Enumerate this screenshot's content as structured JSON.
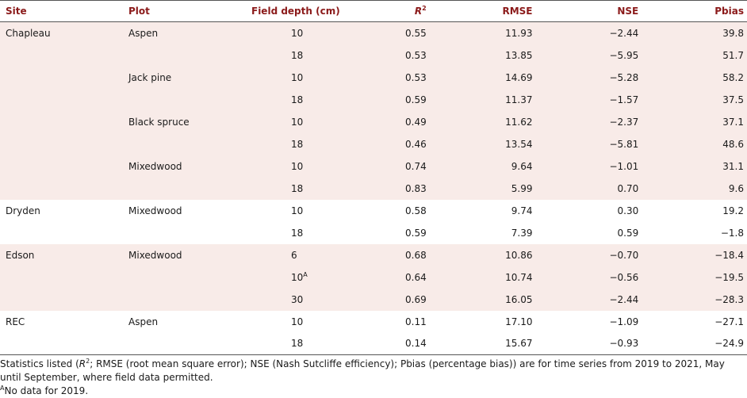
{
  "table": {
    "headers": {
      "site": "Site",
      "plot": "Plot",
      "depth": "Field depth (cm)",
      "r2_base": "R",
      "r2_sup": "2",
      "rmse": "RMSE",
      "nse": "NSE",
      "pbias": "Pbias"
    },
    "rows": [
      {
        "site": "Chapleau",
        "plot": "Aspen",
        "depth": "10",
        "depth_sup": "",
        "r2": "0.55",
        "rmse": "11.93",
        "nse": "−2.44",
        "pbias": "39.8"
      },
      {
        "site": "",
        "plot": "",
        "depth": "18",
        "depth_sup": "",
        "r2": "0.53",
        "rmse": "13.85",
        "nse": "−5.95",
        "pbias": "51.7"
      },
      {
        "site": "",
        "plot": "Jack pine",
        "depth": "10",
        "depth_sup": "",
        "r2": "0.53",
        "rmse": "14.69",
        "nse": "−5.28",
        "pbias": "58.2"
      },
      {
        "site": "",
        "plot": "",
        "depth": "18",
        "depth_sup": "",
        "r2": "0.59",
        "rmse": "11.37",
        "nse": "−1.57",
        "pbias": "37.5"
      },
      {
        "site": "",
        "plot": "Black spruce",
        "depth": "10",
        "depth_sup": "",
        "r2": "0.49",
        "rmse": "11.62",
        "nse": "−2.37",
        "pbias": "37.1"
      },
      {
        "site": "",
        "plot": "",
        "depth": "18",
        "depth_sup": "",
        "r2": "0.46",
        "rmse": "13.54",
        "nse": "−5.81",
        "pbias": "48.6"
      },
      {
        "site": "",
        "plot": "Mixedwood",
        "depth": "10",
        "depth_sup": "",
        "r2": "0.74",
        "rmse": "9.64",
        "nse": "−1.01",
        "pbias": "31.1"
      },
      {
        "site": "",
        "plot": "",
        "depth": "18",
        "depth_sup": "",
        "r2": "0.83",
        "rmse": "5.99",
        "nse": "0.70",
        "pbias": "9.6"
      },
      {
        "site": "Dryden",
        "plot": "Mixedwood",
        "depth": "10",
        "depth_sup": "",
        "r2": "0.58",
        "rmse": "9.74",
        "nse": "0.30",
        "pbias": "19.2"
      },
      {
        "site": "",
        "plot": "",
        "depth": "18",
        "depth_sup": "",
        "r2": "0.59",
        "rmse": "7.39",
        "nse": "0.59",
        "pbias": "−1.8"
      },
      {
        "site": "Edson",
        "plot": "Mixedwood",
        "depth": "6",
        "depth_sup": "",
        "r2": "0.68",
        "rmse": "10.86",
        "nse": "−0.70",
        "pbias": "−18.4"
      },
      {
        "site": "",
        "plot": "",
        "depth": "10",
        "depth_sup": "A",
        "r2": "0.64",
        "rmse": "10.74",
        "nse": "−0.56",
        "pbias": "−19.5"
      },
      {
        "site": "",
        "plot": "",
        "depth": "30",
        "depth_sup": "",
        "r2": "0.69",
        "rmse": "16.05",
        "nse": "−2.44",
        "pbias": "−28.3"
      },
      {
        "site": "REC",
        "plot": "Aspen",
        "depth": "10",
        "depth_sup": "",
        "r2": "0.11",
        "rmse": "17.10",
        "nse": "−1.09",
        "pbias": "−27.1"
      },
      {
        "site": "",
        "plot": "",
        "depth": "18",
        "depth_sup": "",
        "r2": "0.14",
        "rmse": "15.67",
        "nse": "−0.93",
        "pbias": "−24.9"
      }
    ]
  },
  "footnotes": {
    "note1_a": "Statistics listed (",
    "note1_r": "R",
    "note1_sup": "2",
    "note1_b": "; RMSE (root mean square error); NSE (Nash Sutcliffe efficiency); Pbias (percentage bias)) are for time series from 2019 to 2021, May until September, where field data permitted.",
    "note2_sup": "A",
    "note2_text": "No data for 2019."
  },
  "colors": {
    "header_text": "#8b1a1a",
    "shade": "#f8ebe8"
  }
}
